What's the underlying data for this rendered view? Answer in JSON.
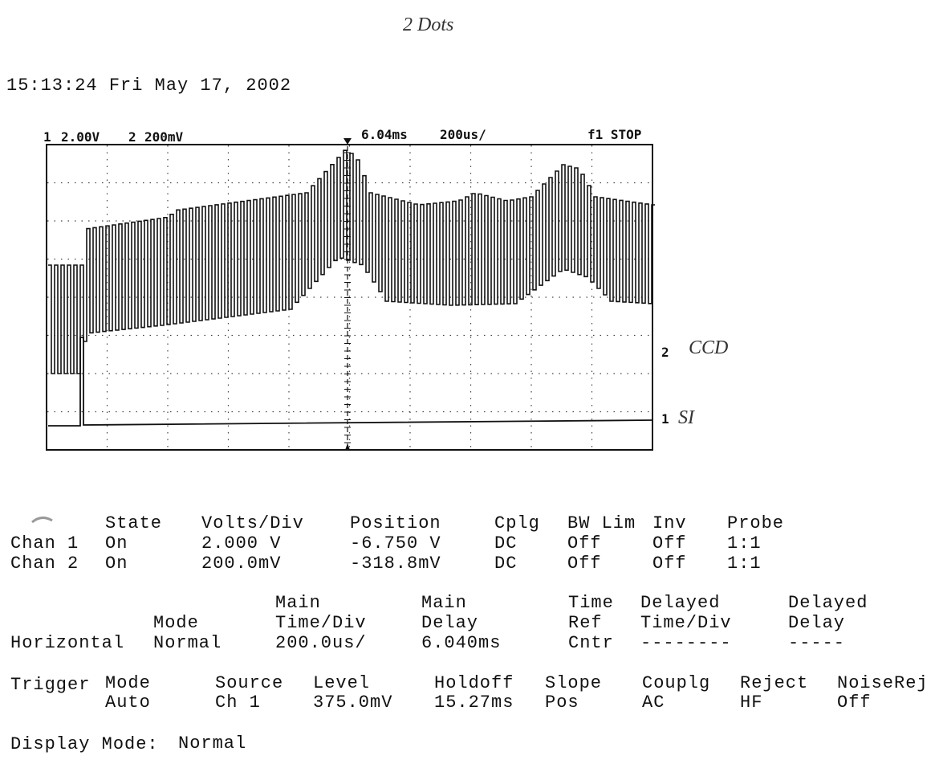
{
  "handwritten_title": "2 Dots",
  "timestamp": "15:13:24   Fri May 17, 2002",
  "scope": {
    "ch1_label": "1",
    "ch1_scale": "2.00V",
    "ch2_label": "2",
    "ch2_scale": "200mV",
    "delay": "6.04ms",
    "timebase": "200us/",
    "status": "f1 STOP",
    "markers": [
      "2",
      "1"
    ],
    "annotations": [
      "CCD",
      "SI"
    ]
  },
  "channels": {
    "headers": [
      "State",
      "Volts/Div",
      "Position",
      "Cplg",
      "BW Lim",
      "Inv",
      "Probe"
    ],
    "rows": [
      [
        "Chan 1",
        "On",
        "2.000 V",
        "-6.750 V",
        "DC",
        "Off",
        "Off",
        "1:1"
      ],
      [
        "Chan 2",
        "On",
        "200.0mV",
        "-318.8mV",
        "DC",
        "Off",
        "Off",
        "1:1"
      ]
    ]
  },
  "horizontal": {
    "label": "Horizontal",
    "columns": [
      {
        "header": [
          "Mode"
        ],
        "value": "Normal"
      },
      {
        "header": [
          "Main",
          "Time/Div"
        ],
        "value": "200.0us/"
      },
      {
        "header": [
          "Main",
          "Delay"
        ],
        "value": "6.040ms"
      },
      {
        "header": [
          "Time",
          "Ref"
        ],
        "value": "Cntr"
      },
      {
        "header": [
          "Delayed",
          "Time/Div"
        ],
        "value": "--------"
      },
      {
        "header": [
          "Delayed",
          "Delay"
        ],
        "value": "-----"
      }
    ]
  },
  "trigger": {
    "label": "Trigger",
    "columns": [
      {
        "header": "Mode",
        "value": "Auto"
      },
      {
        "header": "Source",
        "value": "Ch 1"
      },
      {
        "header": "Level",
        "value": "375.0mV"
      },
      {
        "header": "Holdoff",
        "value": "15.27ms"
      },
      {
        "header": "Slope",
        "value": "Pos"
      },
      {
        "header": "Couplg",
        "value": "AC"
      },
      {
        "header": "Reject",
        "value": "HF"
      },
      {
        "header": "NoiseRej",
        "value": "Off"
      }
    ]
  },
  "display_mode": {
    "label": "Display Mode:",
    "value": "Normal"
  }
}
